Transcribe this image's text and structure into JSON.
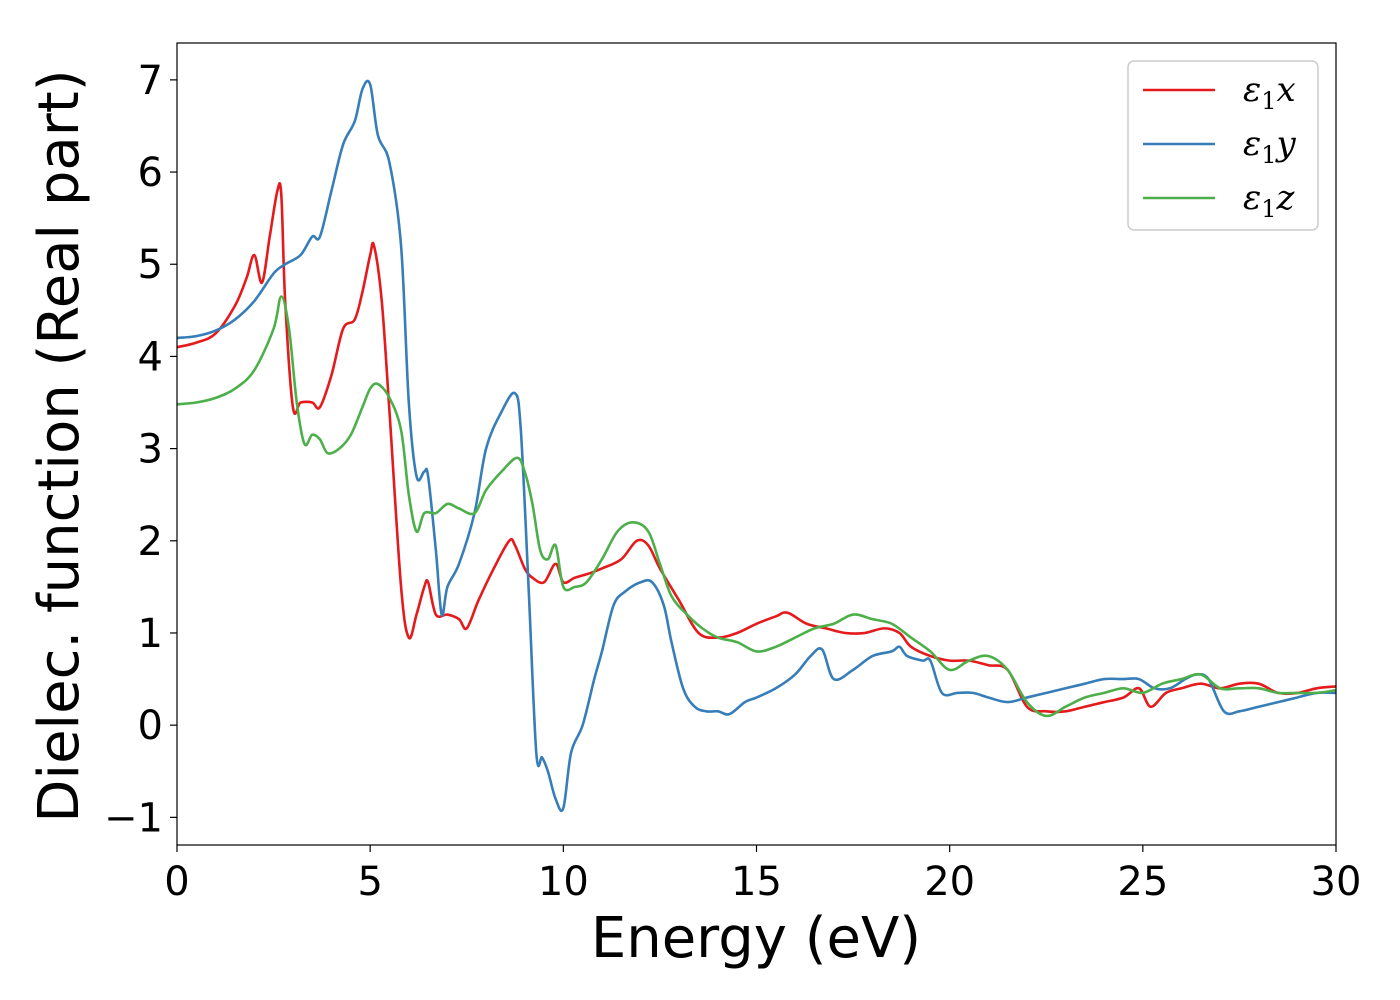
{
  "chart_data": {
    "type": "line",
    "title": "",
    "xlabel": "Energy (eV)",
    "ylabel": "Dielec. function (Real part)",
    "xlim": [
      0,
      30
    ],
    "ylim": [
      -1.3,
      7.4
    ],
    "xticks": [
      0,
      5,
      10,
      15,
      20,
      25,
      30
    ],
    "yticks": [
      -1,
      0,
      1,
      2,
      3,
      4,
      5,
      6,
      7
    ],
    "xtick_labels": [
      "0",
      "5",
      "10",
      "15",
      "20",
      "25",
      "30"
    ],
    "ytick_labels": [
      "−1",
      "0",
      "1",
      "2",
      "3",
      "4",
      "5",
      "6",
      "7"
    ],
    "grid": false,
    "legend_position": "top-right",
    "series": [
      {
        "name": "ε₁x",
        "legend_base": "ε",
        "legend_sub": "1",
        "legend_var": "x",
        "color": "#e41a1c",
        "x": [
          0,
          0.5,
          1,
          1.5,
          1.8,
          2.0,
          2.2,
          2.4,
          2.6,
          2.7,
          2.8,
          3.0,
          3.2,
          3.5,
          3.7,
          4.0,
          4.3,
          4.6,
          4.8,
          5.0,
          5.1,
          5.3,
          5.5,
          5.8,
          6.0,
          6.2,
          6.4,
          6.5,
          6.7,
          7.0,
          7.3,
          7.5,
          7.8,
          8.2,
          8.6,
          8.75,
          9.0,
          9.2,
          9.5,
          9.8,
          10.0,
          10.3,
          10.7,
          11.0,
          11.5,
          11.9,
          12.2,
          12.5,
          13.0,
          13.5,
          14.0,
          14.5,
          15.0,
          15.5,
          15.8,
          16.3,
          16.8,
          17.3,
          17.8,
          18.3,
          18.7,
          19.0,
          19.5,
          20.0,
          20.5,
          21.0,
          21.5,
          22.0,
          22.5,
          23.0,
          23.5,
          24.0,
          24.5,
          24.9,
          25.2,
          25.6,
          26.0,
          26.5,
          27.0,
          27.5,
          28.0,
          28.5,
          29.0,
          29.5,
          30.0
        ],
        "y": [
          4.1,
          4.15,
          4.25,
          4.55,
          4.85,
          5.1,
          4.8,
          5.3,
          5.8,
          5.75,
          4.6,
          3.45,
          3.5,
          3.5,
          3.45,
          3.8,
          4.3,
          4.4,
          4.7,
          5.1,
          5.2,
          4.6,
          3.4,
          1.5,
          0.95,
          1.2,
          1.5,
          1.55,
          1.2,
          1.2,
          1.15,
          1.05,
          1.35,
          1.7,
          2.0,
          1.95,
          1.7,
          1.6,
          1.55,
          1.75,
          1.55,
          1.6,
          1.65,
          1.7,
          1.8,
          2.0,
          1.95,
          1.7,
          1.35,
          1.0,
          0.95,
          1.0,
          1.1,
          1.18,
          1.22,
          1.1,
          1.05,
          1.0,
          1.0,
          1.05,
          1.0,
          0.85,
          0.75,
          0.7,
          0.7,
          0.65,
          0.6,
          0.2,
          0.15,
          0.15,
          0.2,
          0.25,
          0.3,
          0.4,
          0.2,
          0.35,
          0.4,
          0.45,
          0.4,
          0.45,
          0.45,
          0.35,
          0.35,
          0.4,
          0.42
        ]
      },
      {
        "name": "ε₁y",
        "legend_base": "ε",
        "legend_sub": "1",
        "legend_var": "y",
        "color": "#377eb8",
        "x": [
          0,
          0.5,
          1,
          1.5,
          2.0,
          2.5,
          2.8,
          3.2,
          3.5,
          3.7,
          4.0,
          4.3,
          4.6,
          4.8,
          5.0,
          5.2,
          5.5,
          5.8,
          6.0,
          6.2,
          6.4,
          6.5,
          6.7,
          6.85,
          7.0,
          7.3,
          7.7,
          8.0,
          8.4,
          8.75,
          8.9,
          9.1,
          9.3,
          9.45,
          9.6,
          9.8,
          10.0,
          10.2,
          10.5,
          10.8,
          11.0,
          11.3,
          11.6,
          12.0,
          12.3,
          12.6,
          12.8,
          13.1,
          13.4,
          13.7,
          14.0,
          14.3,
          14.7,
          15.0,
          15.5,
          16.0,
          16.4,
          16.7,
          17.0,
          17.5,
          18.0,
          18.5,
          18.7,
          18.9,
          19.3,
          19.5,
          19.8,
          20.2,
          20.6,
          21.0,
          21.5,
          22.0,
          22.5,
          23.0,
          23.5,
          24.0,
          24.5,
          24.9,
          25.3,
          25.7,
          26.1,
          26.4,
          26.7,
          27.1,
          27.5,
          28.0,
          28.5,
          29.0,
          29.5,
          30.0
        ],
        "y": [
          4.2,
          4.22,
          4.28,
          4.4,
          4.6,
          4.9,
          5.0,
          5.1,
          5.3,
          5.3,
          5.8,
          6.3,
          6.55,
          6.9,
          6.95,
          6.4,
          6.1,
          5.2,
          3.5,
          2.7,
          2.75,
          2.7,
          1.9,
          1.2,
          1.5,
          1.75,
          2.3,
          3.0,
          3.4,
          3.6,
          3.2,
          1.5,
          -0.3,
          -0.35,
          -0.5,
          -0.8,
          -0.9,
          -0.3,
          0.0,
          0.5,
          0.8,
          1.3,
          1.45,
          1.55,
          1.55,
          1.3,
          0.9,
          0.4,
          0.2,
          0.15,
          0.15,
          0.12,
          0.25,
          0.3,
          0.4,
          0.55,
          0.75,
          0.82,
          0.5,
          0.6,
          0.75,
          0.8,
          0.85,
          0.75,
          0.7,
          0.7,
          0.35,
          0.35,
          0.35,
          0.3,
          0.25,
          0.3,
          0.35,
          0.4,
          0.45,
          0.5,
          0.5,
          0.5,
          0.4,
          0.4,
          0.5,
          0.55,
          0.5,
          0.15,
          0.15,
          0.2,
          0.25,
          0.3,
          0.35,
          0.35
        ]
      },
      {
        "name": "ε₁z",
        "legend_base": "ε",
        "legend_sub": "1",
        "legend_var": "z",
        "color": "#4daf4a",
        "x": [
          0,
          0.5,
          1,
          1.5,
          2.0,
          2.5,
          2.7,
          2.9,
          3.1,
          3.3,
          3.5,
          3.7,
          3.9,
          4.2,
          4.5,
          4.8,
          5.0,
          5.2,
          5.5,
          5.8,
          6.0,
          6.2,
          6.4,
          6.7,
          7.0,
          7.3,
          7.7,
          8.0,
          8.4,
          8.8,
          9.0,
          9.2,
          9.4,
          9.6,
          9.8,
          10.0,
          10.3,
          10.6,
          11.0,
          11.4,
          11.8,
          12.2,
          12.5,
          12.8,
          13.2,
          13.6,
          14.0,
          14.5,
          15.0,
          15.5,
          16.0,
          16.5,
          17.0,
          17.5,
          18.0,
          18.5,
          19.0,
          19.5,
          20.0,
          20.5,
          21.0,
          21.5,
          22.0,
          22.5,
          23.0,
          23.5,
          24.0,
          24.5,
          25.0,
          25.5,
          26.0,
          26.5,
          27.0,
          27.5,
          28.0,
          28.5,
          29.0,
          29.5,
          30.0
        ],
        "y": [
          3.48,
          3.5,
          3.55,
          3.65,
          3.85,
          4.3,
          4.65,
          4.3,
          3.5,
          3.05,
          3.15,
          3.1,
          2.95,
          3.0,
          3.15,
          3.45,
          3.65,
          3.7,
          3.55,
          3.2,
          2.5,
          2.1,
          2.3,
          2.3,
          2.4,
          2.35,
          2.3,
          2.55,
          2.75,
          2.9,
          2.75,
          2.4,
          1.9,
          1.8,
          1.95,
          1.5,
          1.5,
          1.55,
          1.8,
          2.1,
          2.2,
          2.1,
          1.75,
          1.4,
          1.2,
          1.05,
          0.95,
          0.9,
          0.8,
          0.85,
          0.95,
          1.05,
          1.1,
          1.2,
          1.15,
          1.1,
          0.95,
          0.8,
          0.6,
          0.7,
          0.75,
          0.6,
          0.25,
          0.1,
          0.2,
          0.3,
          0.35,
          0.4,
          0.35,
          0.45,
          0.5,
          0.55,
          0.4,
          0.4,
          0.4,
          0.35,
          0.35,
          0.35,
          0.38
        ]
      }
    ]
  }
}
